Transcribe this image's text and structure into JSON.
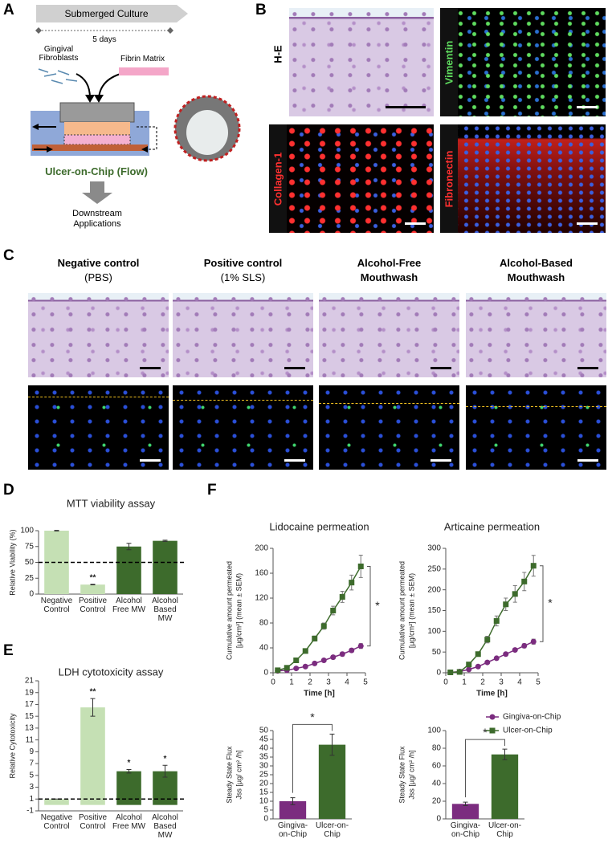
{
  "panels": {
    "A": {
      "label": "A",
      "culture": "Submerged Culture",
      "duration": "5 days",
      "cells": "Gingival Fibroblasts",
      "matrix": "Fibrin Matrix",
      "device": "Ulcer-on-Chip (Flow)",
      "downstream": "Downstream Applications"
    },
    "B": {
      "label": "B",
      "stains": [
        "H-E",
        "Vimentin",
        "Collagen-1",
        "Fibronectin"
      ]
    },
    "C": {
      "label": "C",
      "columns": [
        {
          "title": "Negative control",
          "subtitle": "(PBS)"
        },
        {
          "title": "Positive control",
          "subtitle": "(1% SLS)"
        },
        {
          "title": "Alcohol-Free",
          "subtitle": "Mouthwash"
        },
        {
          "title": "Alcohol-Based",
          "subtitle": "Mouthwash"
        }
      ]
    },
    "D": {
      "label": "D"
    },
    "E": {
      "label": "E"
    },
    "F": {
      "label": "F"
    }
  },
  "chart_data": [
    {
      "type": "bar",
      "title": "MTT viability assay",
      "ylabel": "Relative Viability (%)",
      "categories": [
        "Negative Control",
        "Positive Control",
        "Alcohol Free MW",
        "Alcohol Based MW"
      ],
      "values": [
        100,
        15,
        75,
        84
      ],
      "errors": [
        0.5,
        0.5,
        5,
        1
      ],
      "colors": [
        "#c5e0b4",
        "#c5e0b4",
        "#3d6b2c",
        "#3d6b2c"
      ],
      "significance": [
        null,
        "**",
        null,
        null
      ],
      "reference_line": 50,
      "ylim": [
        0,
        100
      ],
      "yticks": [
        0,
        25,
        50,
        75,
        100
      ]
    },
    {
      "type": "bar",
      "title": "LDH cytotoxicity assay",
      "ylabel": "Relative Cytotoxicity",
      "categories": [
        "Negative Control",
        "Positive Control",
        "Alcohol Free MW",
        "Alcohol Based MW"
      ],
      "values": [
        1,
        16.5,
        5.7,
        5.7
      ],
      "errors": [
        0,
        1.5,
        0.3,
        1.0
      ],
      "colors": [
        "#c5e0b4",
        "#c5e0b4",
        "#3d6b2c",
        "#3d6b2c"
      ],
      "significance": [
        null,
        "**",
        "*",
        "*"
      ],
      "reference_line": 1,
      "ylim": [
        -1,
        21
      ],
      "yticks": [
        -1,
        1,
        3,
        5,
        7,
        9,
        11,
        13,
        15,
        17,
        19,
        21
      ]
    },
    {
      "type": "line",
      "title": "Lidocaine permeation",
      "xlabel": "Time [h]",
      "ylabel": [
        "Cumulative amount permeated",
        "[µg/cm²] (mean ± SEM)"
      ],
      "x": [
        0.25,
        0.75,
        1.25,
        1.75,
        2.25,
        2.75,
        3.25,
        3.75,
        4.25,
        4.75
      ],
      "series": [
        {
          "name": "Gingiva-on-Chip",
          "color": "#7b2c7f",
          "marker": "circle",
          "values": [
            3,
            4,
            7,
            10,
            15,
            20,
            25,
            30,
            36,
            43
          ],
          "errors": [
            1,
            1,
            1,
            1.5,
            2,
            2,
            2.5,
            3,
            3,
            4
          ]
        },
        {
          "name": "Ulcer-on-Chip",
          "color": "#3d6b2c",
          "marker": "square",
          "values": [
            4,
            8,
            20,
            35,
            55,
            75,
            100,
            122,
            145,
            171
          ],
          "errors": [
            1,
            1,
            2,
            3,
            4,
            5,
            7,
            9,
            12,
            18
          ]
        }
      ],
      "significance": "*",
      "xlim": [
        0,
        5
      ],
      "xticks": [
        0,
        1,
        2,
        3,
        4,
        5
      ],
      "ylim": [
        0,
        200
      ],
      "yticks": [
        0,
        40,
        80,
        120,
        160,
        200
      ]
    },
    {
      "type": "line",
      "title": "Articaine permeation",
      "xlabel": "Time [h]",
      "ylabel": [
        "Cumulative amount permeated",
        "[µg/cm²] (mean ± SEM)"
      ],
      "x": [
        0.25,
        0.75,
        1.25,
        1.75,
        2.25,
        2.75,
        3.25,
        3.75,
        4.25,
        4.75
      ],
      "series": [
        {
          "color": "#7b2c7f",
          "marker": "circle",
          "values": [
            1,
            3,
            8,
            15,
            25,
            35,
            45,
            55,
            65,
            75
          ],
          "errors": [
            1,
            1,
            1,
            2,
            2,
            3,
            3,
            4,
            5,
            6
          ]
        },
        {
          "color": "#3d6b2c",
          "marker": "square",
          "values": [
            1,
            2,
            20,
            45,
            80,
            125,
            165,
            190,
            220,
            258
          ],
          "errors": [
            1,
            1,
            3,
            5,
            8,
            12,
            15,
            20,
            22,
            25
          ]
        }
      ],
      "significance": "*",
      "xlim": [
        0,
        5
      ],
      "xticks": [
        0,
        1,
        2,
        3,
        4,
        5
      ],
      "ylim": [
        0,
        300
      ],
      "yticks": [
        0,
        50,
        100,
        150,
        200,
        250,
        300
      ]
    },
    {
      "type": "bar",
      "ylabel": [
        "Steady State Flux",
        "Jss [µg/ cm² /h]"
      ],
      "categories": [
        "Gingiva-on-Chip",
        "Ulcer-on-Chip"
      ],
      "values": [
        10,
        42
      ],
      "errors": [
        2,
        6
      ],
      "colors": [
        "#7b2c7f",
        "#3d6b2c"
      ],
      "significance": "*",
      "ylim": [
        0,
        50
      ],
      "yticks": [
        0,
        5,
        10,
        15,
        20,
        25,
        30,
        35,
        40,
        45,
        50
      ]
    },
    {
      "type": "bar",
      "ylabel": [
        "Steady State Flux",
        "Jss [µg/ cm² /h]"
      ],
      "categories": [
        "Gingiva-on-Chip",
        "Ulcer-on-Chip"
      ],
      "values": [
        17,
        73
      ],
      "errors": [
        2,
        6
      ],
      "colors": [
        "#7b2c7f",
        "#3d6b2c"
      ],
      "significance": "*",
      "ylim": [
        0,
        100
      ],
      "yticks": [
        0,
        20,
        40,
        60,
        80,
        100
      ]
    }
  ]
}
